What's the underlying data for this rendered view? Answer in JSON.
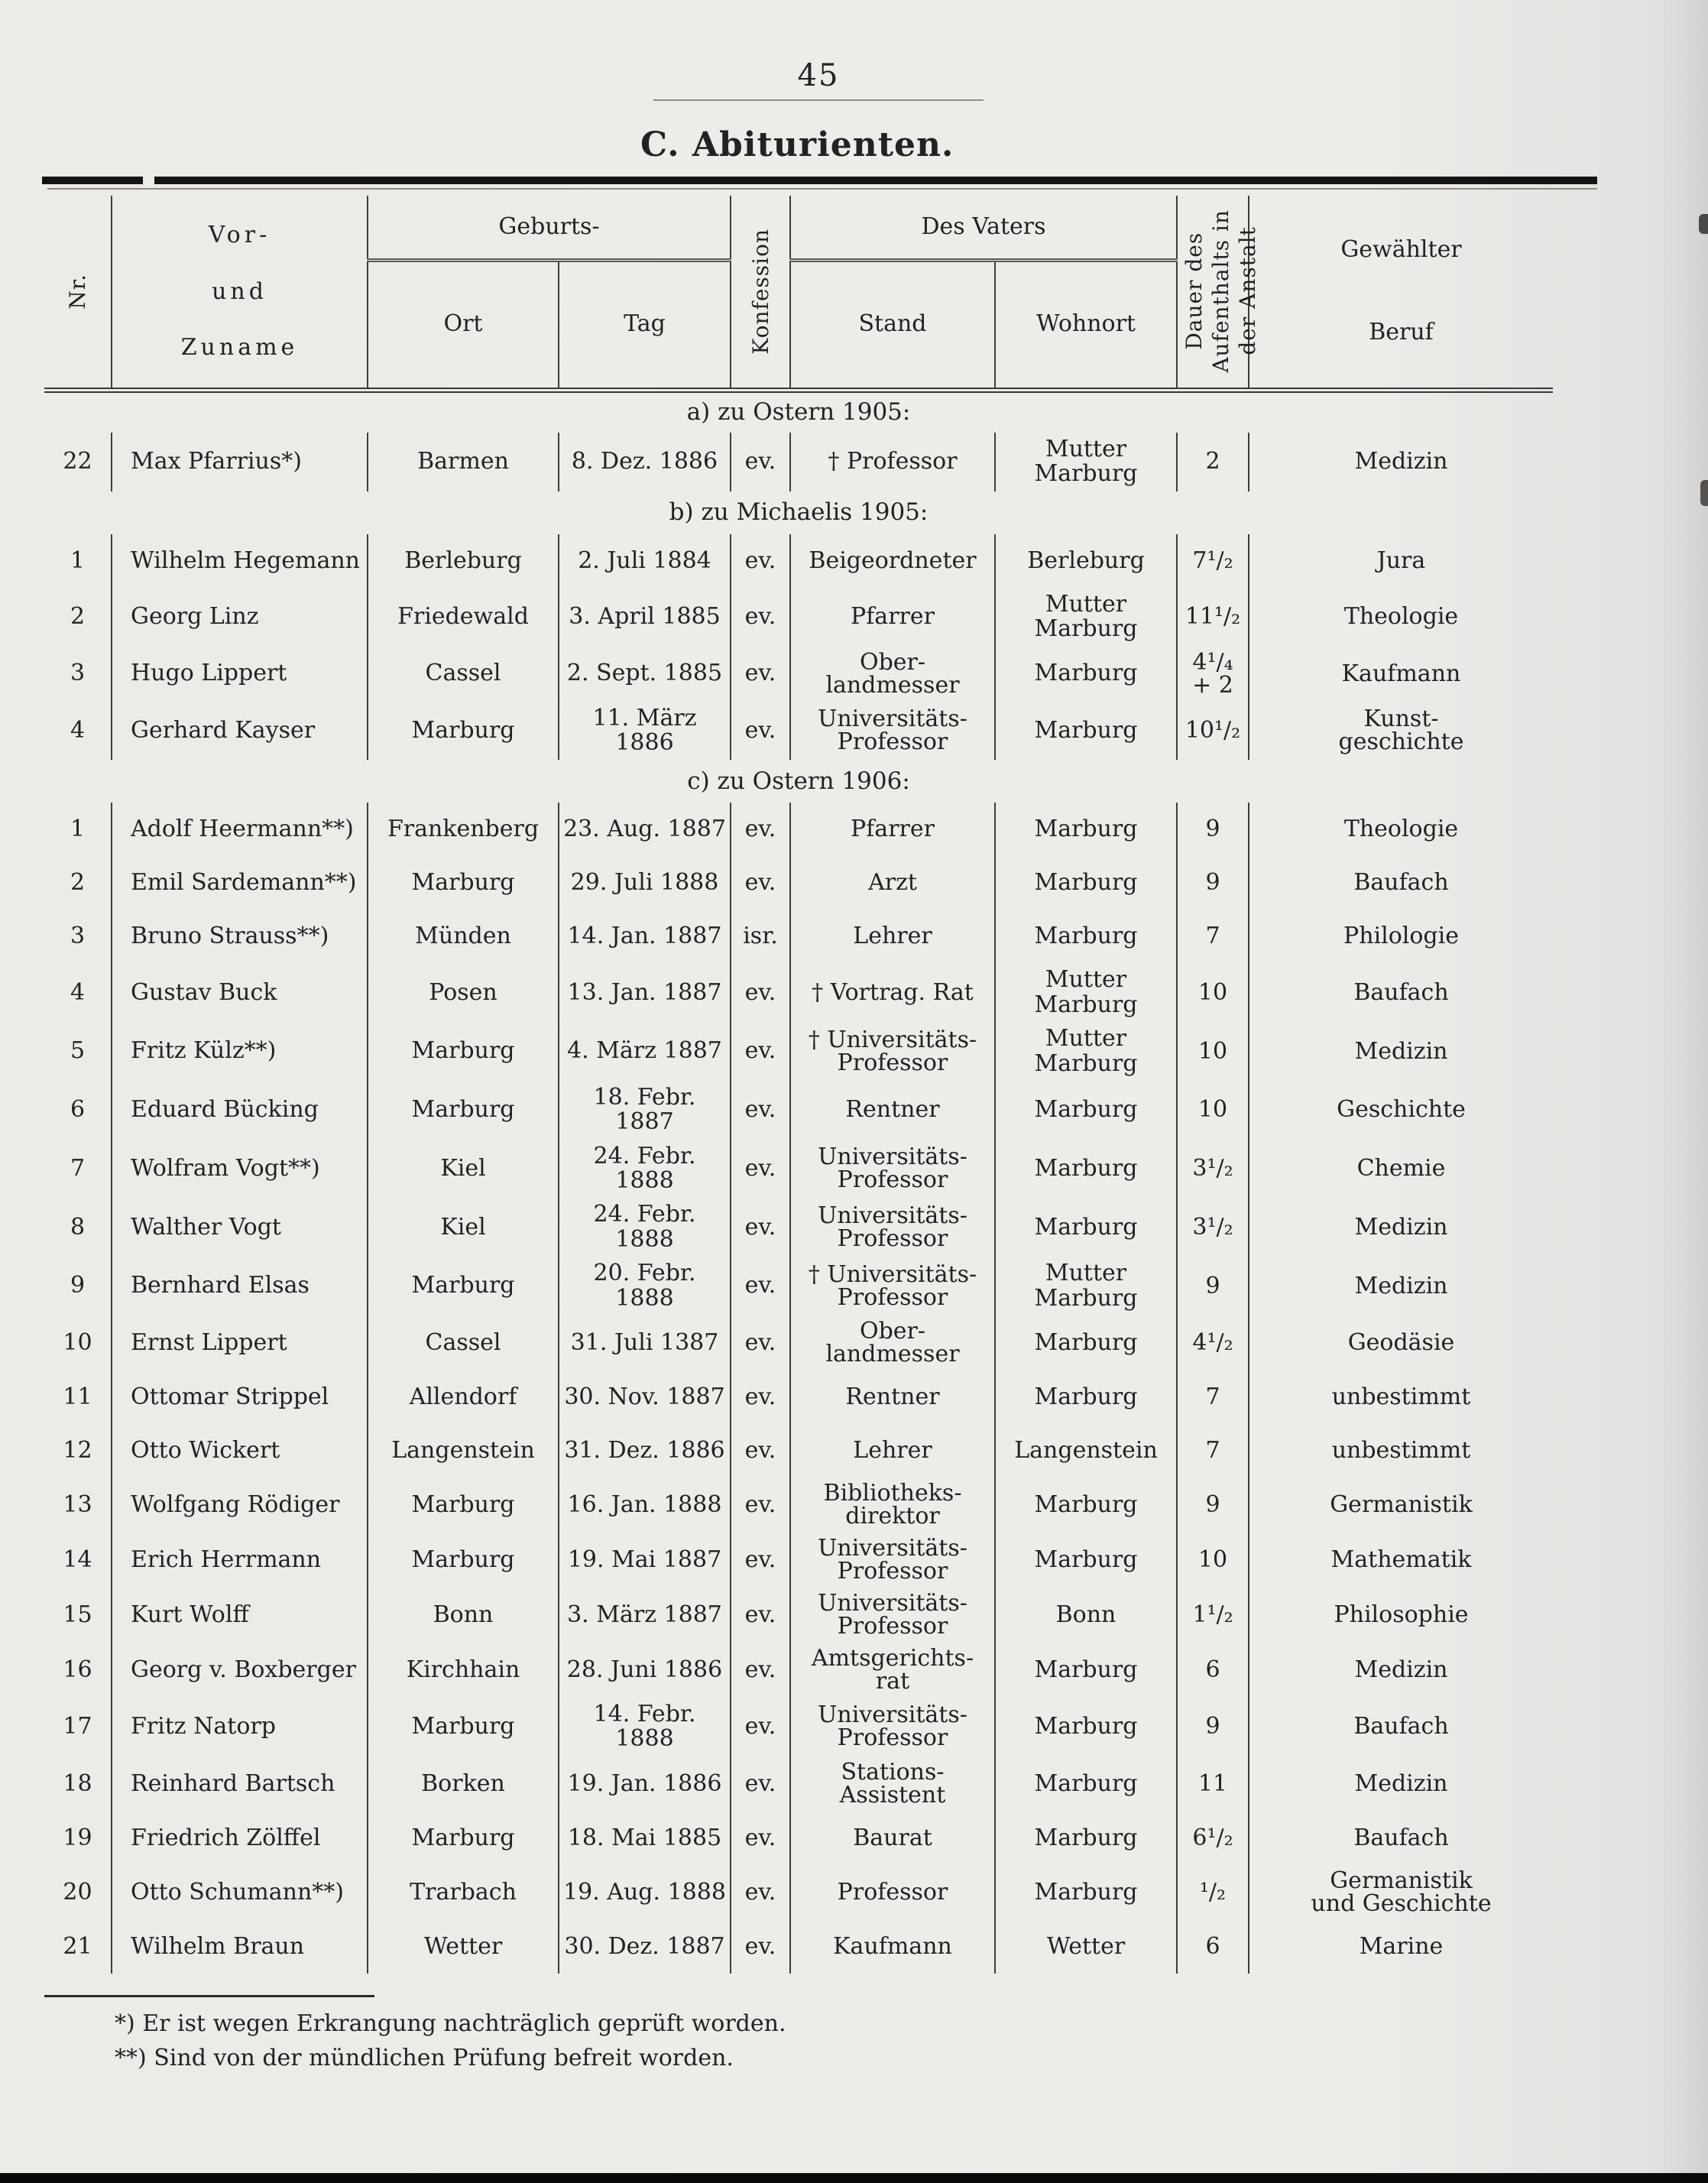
{
  "page": {
    "number": "45",
    "title": "C. Abiturienten."
  },
  "colors": {
    "paper": "#ecebe8",
    "ink": "#222222",
    "table_line": "#3e3c3a",
    "heavy_rule": "#141414"
  },
  "table": {
    "headers": {
      "nr": "Nr.",
      "name": "Vor-\nund\nZuname",
      "geburts": "Geburts-",
      "ort": "Ort",
      "tag": "Tag",
      "konfession": "Konfession",
      "vaters": "Des Vaters",
      "stand": "Stand",
      "wohnort": "Wohnort",
      "dauer": "Dauer des\nAufenthalts in\nder Anstalt",
      "beruf": "Gewählter\nBeruf"
    },
    "sections": [
      {
        "label": "a) zu Ostern 1905:",
        "rows": [
          {
            "nr": "22",
            "name": "Max Pfarrius*)",
            "ort": "Barmen",
            "tag": "8. Dez. 1886",
            "konf": "ev.",
            "stand": "† Professor",
            "wohnort": "Mutter Marburg",
            "dauer": "2",
            "beruf": "Medizin"
          }
        ]
      },
      {
        "label": "b) zu Michaelis 1905:",
        "rows": [
          {
            "nr": "1",
            "name": "Wilhelm Hegemann",
            "ort": "Berleburg",
            "tag": "2. Juli 1884",
            "konf": "ev.",
            "stand": "Beigeordneter",
            "wohnort": "Berleburg",
            "dauer": "7¹/₂",
            "beruf": "Jura"
          },
          {
            "nr": "2",
            "name": "Georg Linz",
            "ort": "Friedewald",
            "tag": "3. April 1885",
            "konf": "ev.",
            "stand": "Pfarrer",
            "wohnort": "Mutter Marburg",
            "dauer": "11¹/₂",
            "beruf": "Theologie"
          },
          {
            "nr": "3",
            "name": "Hugo Lippert",
            "ort": "Cassel",
            "tag": "2. Sept. 1885",
            "konf": "ev.",
            "stand": "Ober-\nlandmesser",
            "wohnort": "Marburg",
            "dauer": "4¹/₄\n+ 2",
            "beruf": "Kaufmann"
          },
          {
            "nr": "4",
            "name": "Gerhard Kayser",
            "ort": "Marburg",
            "tag": "11. März 1886",
            "konf": "ev.",
            "stand": "Universitäts-\nProfessor",
            "wohnort": "Marburg",
            "dauer": "10¹/₂",
            "beruf": "Kunst-\ngeschichte"
          }
        ]
      },
      {
        "label": "c) zu Ostern 1906:",
        "rows": [
          {
            "nr": "1",
            "name": "Adolf Heermann**)",
            "ort": "Frankenberg",
            "tag": "23. Aug. 1887",
            "konf": "ev.",
            "stand": "Pfarrer",
            "wohnort": "Marburg",
            "dauer": "9",
            "beruf": "Theologie"
          },
          {
            "nr": "2",
            "name": "Emil Sardemann**)",
            "ort": "Marburg",
            "tag": "29. Juli 1888",
            "konf": "ev.",
            "stand": "Arzt",
            "wohnort": "Marburg",
            "dauer": "9",
            "beruf": "Baufach"
          },
          {
            "nr": "3",
            "name": "Bruno Strauss**)",
            "ort": "Münden",
            "tag": "14. Jan. 1887",
            "konf": "isr.",
            "stand": "Lehrer",
            "wohnort": "Marburg",
            "dauer": "7",
            "beruf": "Philologie"
          },
          {
            "nr": "4",
            "name": "Gustav Buck",
            "ort": "Posen",
            "tag": "13. Jan. 1887",
            "konf": "ev.",
            "stand": "† Vortrag. Rat",
            "wohnort": "Mutter Marburg",
            "dauer": "10",
            "beruf": "Baufach"
          },
          {
            "nr": "5",
            "name": "Fritz Külz**)",
            "ort": "Marburg",
            "tag": "4. März 1887",
            "konf": "ev.",
            "stand": "† Universitäts-\nProfessor",
            "wohnort": "Mutter Marburg",
            "dauer": "10",
            "beruf": "Medizin"
          },
          {
            "nr": "6",
            "name": "Eduard Bücking",
            "ort": "Marburg",
            "tag": "18. Febr. 1887",
            "konf": "ev.",
            "stand": "Rentner",
            "wohnort": "Marburg",
            "dauer": "10",
            "beruf": "Geschichte"
          },
          {
            "nr": "7",
            "name": "Wolfram Vogt**)",
            "ort": "Kiel",
            "tag": "24. Febr. 1888",
            "konf": "ev.",
            "stand": "Universitäts-\nProfessor",
            "wohnort": "Marburg",
            "dauer": "3¹/₂",
            "beruf": "Chemie"
          },
          {
            "nr": "8",
            "name": "Walther Vogt",
            "ort": "Kiel",
            "tag": "24. Febr. 1888",
            "konf": "ev.",
            "stand": "Universitäts-\nProfessor",
            "wohnort": "Marburg",
            "dauer": "3¹/₂",
            "beruf": "Medizin"
          },
          {
            "nr": "9",
            "name": "Bernhard Elsas",
            "ort": "Marburg",
            "tag": "20. Febr. 1888",
            "konf": "ev.",
            "stand": "† Universitäts-\nProfessor",
            "wohnort": "Mutter Marburg",
            "dauer": "9",
            "beruf": "Medizin"
          },
          {
            "nr": "10",
            "name": "Ernst Lippert",
            "ort": "Cassel",
            "tag": "31. Juli 1387",
            "konf": "ev.",
            "stand": "Ober-\nlandmesser",
            "wohnort": "Marburg",
            "dauer": "4¹/₂",
            "beruf": "Geodäsie"
          },
          {
            "nr": "11",
            "name": "Ottomar Strippel",
            "ort": "Allendorf",
            "tag": "30. Nov. 1887",
            "konf": "ev.",
            "stand": "Rentner",
            "wohnort": "Marburg",
            "dauer": "7",
            "beruf": "unbestimmt"
          },
          {
            "nr": "12",
            "name": "Otto Wickert",
            "ort": "Langenstein",
            "tag": "31. Dez. 1886",
            "konf": "ev.",
            "stand": "Lehrer",
            "wohnort": "Langenstein",
            "dauer": "7",
            "beruf": "unbestimmt"
          },
          {
            "nr": "13",
            "name": "Wolfgang Rödiger",
            "ort": "Marburg",
            "tag": "16. Jan. 1888",
            "konf": "ev.",
            "stand": "Bibliotheks-\ndirektor",
            "wohnort": "Marburg",
            "dauer": "9",
            "beruf": "Germanistik"
          },
          {
            "nr": "14",
            "name": "Erich Herrmann",
            "ort": "Marburg",
            "tag": "19. Mai 1887",
            "konf": "ev.",
            "stand": "Universitäts-\nProfessor",
            "wohnort": "Marburg",
            "dauer": "10",
            "beruf": "Mathematik"
          },
          {
            "nr": "15",
            "name": "Kurt Wolff",
            "ort": "Bonn",
            "tag": "3. März 1887",
            "konf": "ev.",
            "stand": "Universitäts-\nProfessor",
            "wohnort": "Bonn",
            "dauer": "1¹/₂",
            "beruf": "Philosophie"
          },
          {
            "nr": "16",
            "name": "Georg v. Boxberger",
            "ort": "Kirchhain",
            "tag": "28. Juni 1886",
            "konf": "ev.",
            "stand": "Amtsgerichts-\nrat",
            "wohnort": "Marburg",
            "dauer": "6",
            "beruf": "Medizin"
          },
          {
            "nr": "17",
            "name": "Fritz Natorp",
            "ort": "Marburg",
            "tag": "14. Febr. 1888",
            "konf": "ev.",
            "stand": "Universitäts-\nProfessor",
            "wohnort": "Marburg",
            "dauer": "9",
            "beruf": "Baufach"
          },
          {
            "nr": "18",
            "name": "Reinhard Bartsch",
            "ort": "Borken",
            "tag": "19. Jan. 1886",
            "konf": "ev.",
            "stand": "Stations-\nAssistent",
            "wohnort": "Marburg",
            "dauer": "11",
            "beruf": "Medizin"
          },
          {
            "nr": "19",
            "name": "Friedrich Zölffel",
            "ort": "Marburg",
            "tag": "18. Mai 1885",
            "konf": "ev.",
            "stand": "Baurat",
            "wohnort": "Marburg",
            "dauer": "6¹/₂",
            "beruf": "Baufach"
          },
          {
            "nr": "20",
            "name": "Otto Schumann**)",
            "ort": "Trarbach",
            "tag": "19. Aug. 1888",
            "konf": "ev.",
            "stand": "Professor",
            "wohnort": "Marburg",
            "dauer": "¹/₂",
            "beruf": "Germanistik\nund Geschichte"
          },
          {
            "nr": "21",
            "name": "Wilhelm Braun",
            "ort": "Wetter",
            "tag": "30. Dez. 1887",
            "konf": "ev.",
            "stand": "Kaufmann",
            "wohnort": "Wetter",
            "dauer": "6",
            "beruf": "Marine"
          }
        ]
      }
    ],
    "footnotes": [
      "*)  Er ist wegen Erkrangung nachträglich geprüft worden.",
      "**)  Sind von der mündlichen Prüfung befreit worden."
    ]
  }
}
